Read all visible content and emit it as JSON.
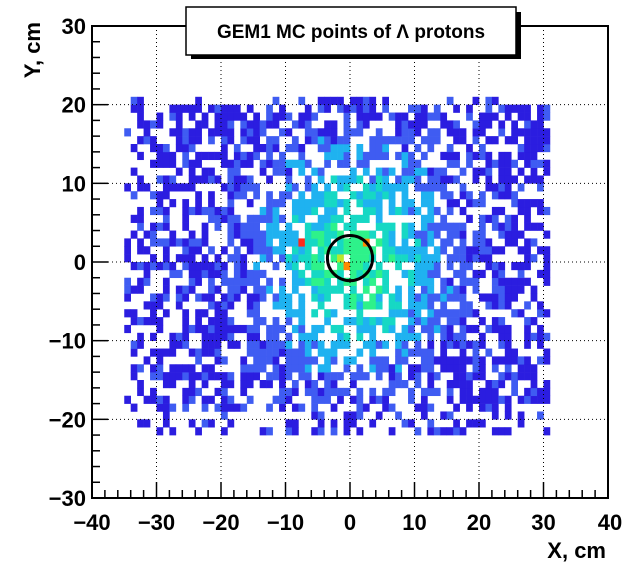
{
  "chart_data": {
    "type": "heatmap",
    "title": "GEM1 MC points of Λ protons",
    "xlabel": "X, cm",
    "ylabel": "Y, cm",
    "xlim": [
      -40,
      40
    ],
    "ylim": [
      -30,
      30
    ],
    "x_ticks": [
      "−40",
      "−30",
      "−20",
      "−10",
      "0",
      "10",
      "20",
      "30",
      "40"
    ],
    "y_ticks": [
      "−30",
      "−20",
      "−10",
      "0",
      "10",
      "20",
      "30"
    ],
    "grid": true,
    "bin_width": 1,
    "data_range_x": [
      -35,
      31
    ],
    "data_range_y": [
      -22,
      21
    ],
    "colormap": [
      "#2b1de0",
      "#3f5cf2",
      "#1fb2f0",
      "#16d8c4",
      "#2ef28a",
      "#b8e82a",
      "#ff8a00",
      "#ff2a1a"
    ],
    "hot_cells": [
      {
        "x": -8,
        "y": 2,
        "level": 7
      },
      {
        "x": 2,
        "y": 2,
        "level": 6
      },
      {
        "x": -1,
        "y": -1,
        "level": 6
      },
      {
        "x": -2,
        "y": 0,
        "level": 5
      }
    ],
    "circle": {
      "cx": 0,
      "cy": 0.5,
      "r": 3.5
    }
  }
}
